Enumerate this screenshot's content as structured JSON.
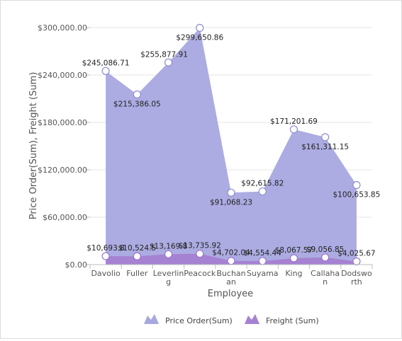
{
  "chart_data": {
    "type": "area",
    "xlabel": "Employee",
    "ylabel": "Price Order(Sum), Freight (Sum)",
    "ylim": [
      0,
      300000
    ],
    "yticks": [
      0,
      60000,
      120000,
      180000,
      240000,
      300000
    ],
    "ytick_labels": [
      "$0.00",
      "$60,000.00",
      "$120,000.00",
      "$180,000.00",
      "$240,000.00",
      "$300,000.00"
    ],
    "grid": true,
    "legend_position": "bottom",
    "categories": [
      [
        "Davolio"
      ],
      [
        "Fuller"
      ],
      [
        "Leverlin",
        "g"
      ],
      [
        "Peacock"
      ],
      [
        "Buchan",
        "an"
      ],
      [
        "Suyama"
      ],
      [
        "King"
      ],
      [
        "Callaha",
        "n"
      ],
      [
        "Dodswo",
        "rth"
      ]
    ],
    "series": [
      {
        "name": "Price Order(Sum)",
        "color": "#a8a8e0",
        "values": [
          245086.71,
          215386.05,
          255877.91,
          299650.86,
          91068.23,
          92615.82,
          171201.69,
          161311.15,
          100653.85
        ],
        "labels": [
          "$245,086.71",
          "$215,386.05",
          "$255,877.91",
          "$299,650.86",
          "$91,068.23",
          "$92,615.82",
          "$171,201.69",
          "$161,311.15",
          "$100,653.85"
        ]
      },
      {
        "name": "Freight (Sum)",
        "color": "#a682d2",
        "values": [
          10693.8,
          10524.5,
          13169.8,
          13735.92,
          4702.04,
          4554.44,
          8067.57,
          9056.85,
          4025.67
        ],
        "labels": [
          "$10,693.8",
          "$10,524.5",
          "$13,169.8",
          "$13,735.92",
          "$4,702.04",
          "$4,554.44",
          "$8,067.57",
          "$9,056.85",
          "$4,025.67"
        ]
      }
    ]
  }
}
